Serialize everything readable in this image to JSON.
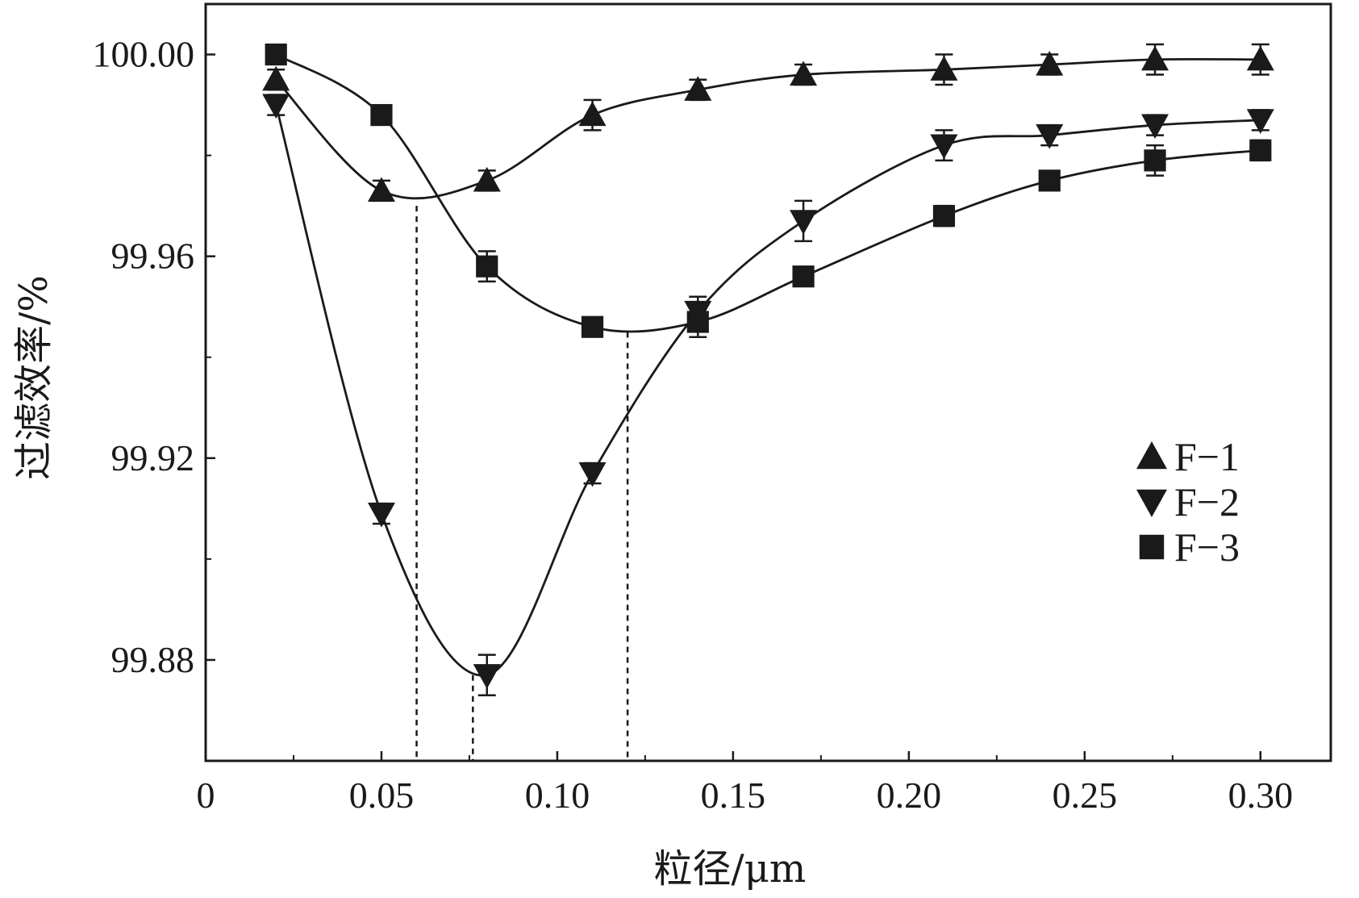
{
  "chart_data": {
    "type": "line",
    "title": "",
    "xlabel": "粒径/μm",
    "ylabel": "过滤效率/%",
    "xlim": [
      0,
      0.32
    ],
    "ylim": [
      99.86,
      100.01
    ],
    "x_ticks": [
      0,
      0.05,
      0.1,
      0.15,
      0.2,
      0.25,
      0.3
    ],
    "x_tick_labels": [
      "0",
      "0.05",
      "0.10",
      "0.15",
      "0.20",
      "0.25",
      "0.30"
    ],
    "y_ticks": [
      99.88,
      99.92,
      99.96,
      100.0
    ],
    "y_tick_labels": [
      "99.88",
      "99.92",
      "99.96",
      "100.00"
    ],
    "grid": false,
    "legend_position": "right",
    "x": [
      0.02,
      0.05,
      0.08,
      0.11,
      0.14,
      0.17,
      0.21,
      0.24,
      0.27,
      0.3
    ],
    "series": [
      {
        "name": "F−1",
        "marker": "triangle-up",
        "values": [
          99.995,
          99.973,
          99.975,
          99.988,
          99.993,
          99.996,
          99.997,
          99.998,
          99.999,
          99.999
        ],
        "errors": [
          0.002,
          0.002,
          0.002,
          0.003,
          0.002,
          0.002,
          0.003,
          0.002,
          0.003,
          0.003
        ]
      },
      {
        "name": "F−2",
        "marker": "triangle-down",
        "values": [
          99.99,
          99.909,
          99.877,
          99.917,
          99.949,
          99.967,
          99.982,
          99.984,
          99.986,
          99.987
        ],
        "errors": [
          0.002,
          0.002,
          0.004,
          0.002,
          0.003,
          0.004,
          0.003,
          0.002,
          0.002,
          0.002
        ]
      },
      {
        "name": "F−3",
        "marker": "square",
        "values": [
          100.0,
          99.988,
          99.958,
          99.946,
          99.947,
          99.956,
          99.968,
          99.975,
          99.979,
          99.981
        ],
        "errors": [
          0.001,
          0.001,
          0.003,
          0.001,
          0.003,
          0.001,
          0.002,
          0.001,
          0.003,
          0.002
        ]
      }
    ],
    "annotations": [
      {
        "type": "vertical-dashed-line",
        "series": "F−1",
        "x": 0.06,
        "y": 99.97
      },
      {
        "type": "vertical-dashed-line",
        "series": "F−2",
        "x": 0.076,
        "y": 99.877
      },
      {
        "type": "vertical-dashed-line",
        "series": "F−3",
        "x": 0.12,
        "y": 99.945
      }
    ]
  }
}
